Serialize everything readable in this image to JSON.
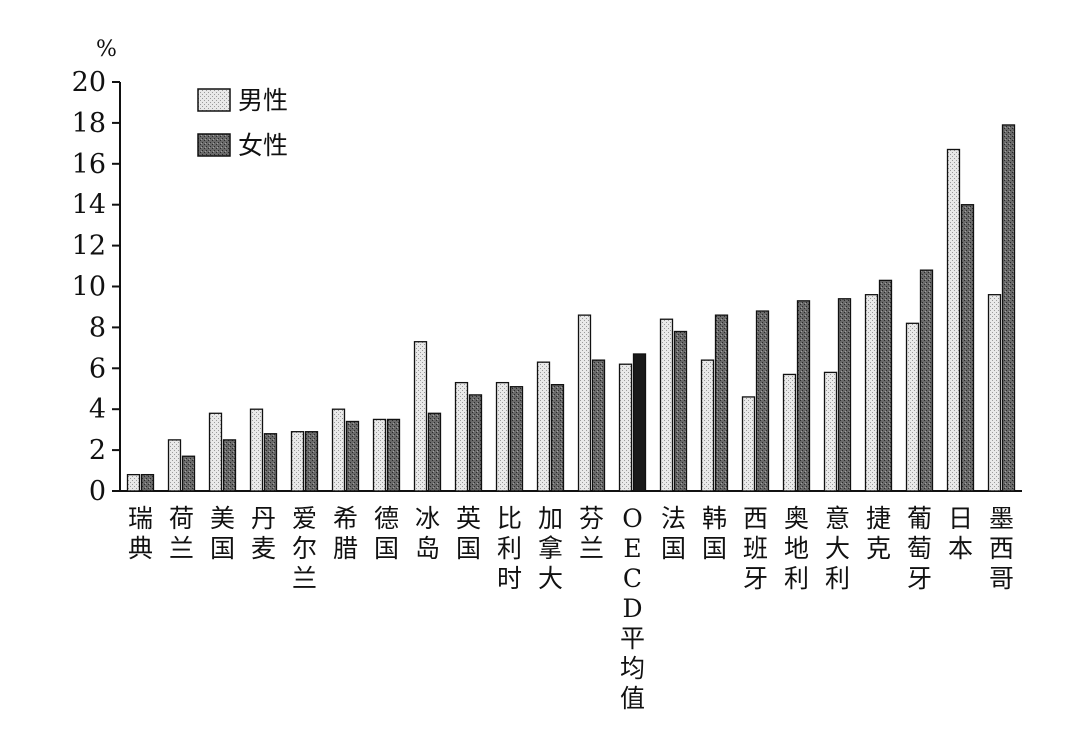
{
  "chart_data": {
    "type": "bar",
    "unit_label": "%",
    "ylim": [
      0,
      20
    ],
    "yticks": [
      "0",
      "2",
      "4",
      "6",
      "8",
      "10",
      "12",
      "14",
      "16",
      "18",
      "20"
    ],
    "grid": false,
    "legend_position": "top-left",
    "categories": [
      "瑞典",
      "荷兰",
      "美国",
      "丹麦",
      "爱尔兰",
      "希腊",
      "德国",
      "冰岛",
      "英国",
      "比利时",
      "加拿大",
      "芬兰",
      "OECD平均值",
      "法国",
      "韩国",
      "西班牙",
      "奥地利",
      "意大利",
      "捷克",
      "葡萄牙",
      "日本",
      "墨西哥"
    ],
    "series": [
      {
        "name": "男性",
        "color": "#e6e6e6",
        "values": [
          0.8,
          2.5,
          3.8,
          4.0,
          2.9,
          4.0,
          3.5,
          7.3,
          5.3,
          5.3,
          6.3,
          8.6,
          6.2,
          8.4,
          6.4,
          4.6,
          5.7,
          5.8,
          9.6,
          8.2,
          16.7,
          9.6
        ]
      },
      {
        "name": "女性",
        "color": "#5c5c5c",
        "values": [
          0.8,
          1.7,
          2.5,
          2.8,
          2.9,
          3.4,
          3.5,
          3.8,
          4.7,
          5.1,
          5.2,
          6.4,
          6.7,
          7.8,
          8.6,
          8.8,
          9.3,
          9.4,
          10.3,
          10.8,
          14.0,
          17.9
        ]
      }
    ],
    "highlight_category": "OECD平均值",
    "highlight_color": "#1a1a1a"
  }
}
